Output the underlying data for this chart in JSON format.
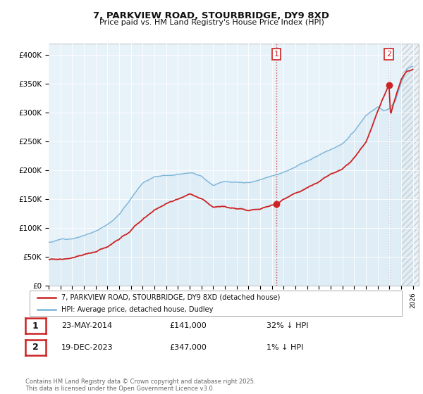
{
  "title1": "7, PARKVIEW ROAD, STOURBRIDGE, DY9 8XD",
  "title2": "Price paid vs. HM Land Registry's House Price Index (HPI)",
  "ylabel_ticks": [
    "£0",
    "£50K",
    "£100K",
    "£150K",
    "£200K",
    "£250K",
    "£300K",
    "£350K",
    "£400K"
  ],
  "ytick_values": [
    0,
    50000,
    100000,
    150000,
    200000,
    250000,
    300000,
    350000,
    400000
  ],
  "ylim": [
    0,
    420000
  ],
  "xlim_start": 1995.0,
  "xlim_end": 2026.5,
  "hpi_color": "#7ab4d8",
  "hpi_fill_color": "#daeaf5",
  "price_color": "#cc2222",
  "marker1_year": 2014.385,
  "marker2_year": 2023.962,
  "point1_price": 141000,
  "point2_price": 347000,
  "legend_label1": "7, PARKVIEW ROAD, STOURBRIDGE, DY9 8XD (detached house)",
  "legend_label2": "HPI: Average price, detached house, Dudley",
  "note1_num": "1",
  "note1_date": "23-MAY-2014",
  "note1_price": "£141,000",
  "note1_info": "32% ↓ HPI",
  "note2_num": "2",
  "note2_date": "19-DEC-2023",
  "note2_price": "£347,000",
  "note2_info": "1% ↓ HPI",
  "footnote": "Contains HM Land Registry data © Crown copyright and database right 2025.\nThis data is licensed under the Open Government Licence v3.0.",
  "background_color": "#ffffff",
  "plot_bg_color": "#e8f2f9",
  "grid_color": "#ffffff"
}
